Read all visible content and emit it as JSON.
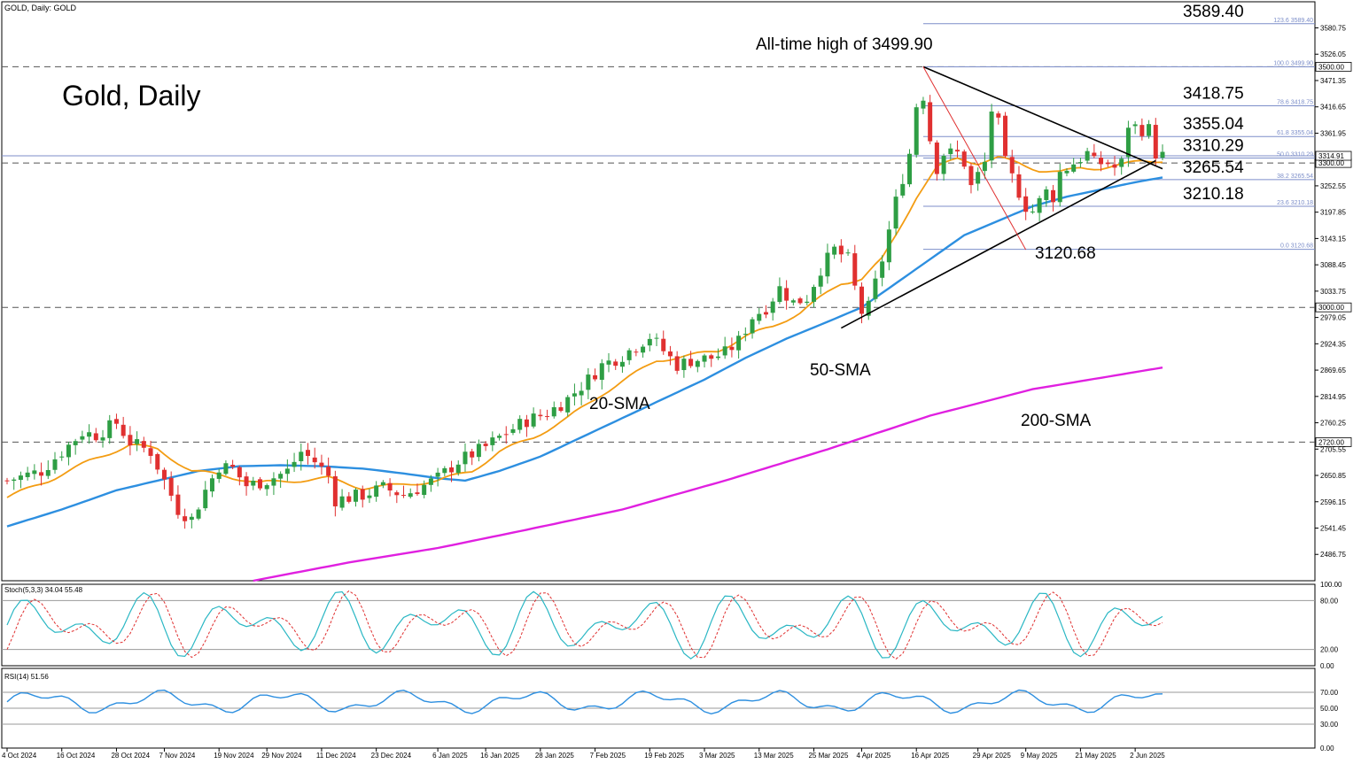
{
  "header": {
    "symbol_line": "GOLD, Daily:  GOLD"
  },
  "title": "Gold, Daily",
  "colors": {
    "up": "#2e9e44",
    "down": "#e03030",
    "sma20": "#f39c12",
    "sma50": "#2d8fe0",
    "sma200": "#e020e0",
    "fib": "#7c8ec9",
    "stoch_main": "#2ab7c4",
    "stoch_signal": "#e03030",
    "rsi": "#2d8fe0"
  },
  "annotations": {
    "ath": "All-time high of 3499.90",
    "sma20": "20-SMA",
    "sma50": "50-SMA",
    "sma200": "200-SMA",
    "low": "3120.68"
  },
  "panels": {
    "stoch_label": "Stoch(5,3,3) 34.04 55.48",
    "rsi_label": "RSI(14) 51.56"
  },
  "chart_data": {
    "type": "candlestick",
    "ylim": [
      2432,
      3635
    ],
    "price_axis_ticks": [
      "3580.75",
      "3526.05",
      "3471.35",
      "3416.65",
      "3361.95",
      "3307.25",
      "3252.55",
      "3197.85",
      "3143.15",
      "3088.45",
      "3033.75",
      "2979.05",
      "2924.35",
      "2869.65",
      "2814.95",
      "2760.25",
      "2705.55",
      "2650.85",
      "2596.15",
      "2541.45",
      "2486.75"
    ],
    "price_axis_tick_values": [
      3580.75,
      3526.05,
      3471.35,
      3416.65,
      3361.95,
      3307.25,
      3252.55,
      3197.85,
      3143.15,
      3088.45,
      3033.75,
      2979.05,
      2924.35,
      2869.65,
      2814.95,
      2760.25,
      2705.55,
      2650.85,
      2596.15,
      2541.45,
      2486.75
    ],
    "date_ticks": [
      "4 Oct 2024",
      "16 Oct 2024",
      "28 Oct 2024",
      "7 Nov 2024",
      "19 Nov 2024",
      "29 Nov 2024",
      "11 Dec 2024",
      "23 Dec 2024",
      "6 Jan 2025",
      "16 Jan 2025",
      "28 Jan 2025",
      "7 Feb 2025",
      "19 Feb 2025",
      "3 Mar 2025",
      "13 Mar 2025",
      "25 Mar 2025",
      "4 Apr 2025",
      "16 Apr 2025",
      "29 Apr 2025",
      "9 May 2025",
      "21 May 2025",
      "2 Jun 2025"
    ],
    "date_tick_bar_index": [
      0,
      8,
      16,
      23,
      31,
      38,
      46,
      54,
      63,
      70,
      78,
      86,
      94,
      102,
      110,
      118,
      125,
      133,
      142,
      149,
      157,
      165
    ],
    "horizontal_levels": [
      {
        "value": 3500,
        "label": "3500.00"
      },
      {
        "value": 3300,
        "label": "3300.00"
      },
      {
        "value": 3000,
        "label": "3000.00"
      },
      {
        "value": 2720,
        "label": "2720.00"
      }
    ],
    "current_price": {
      "value": 3314.91,
      "label": "3314.91"
    },
    "fibonacci": [
      {
        "ratio": "123.6",
        "value": 3589.4,
        "label": "3589.40",
        "small": "123.6  3589.40"
      },
      {
        "ratio": "100.0",
        "value": 3499.9,
        "label": "",
        "small": "100.0  3499.90"
      },
      {
        "ratio": "78.6",
        "value": 3418.75,
        "label": "3418.75",
        "small": "78.6  3418.75"
      },
      {
        "ratio": "61.8",
        "value": 3355.04,
        "label": "3355.04",
        "small": "61.8  3355.04"
      },
      {
        "ratio": "50.0",
        "value": 3310.29,
        "label": "3310.29",
        "small": "50.0  3310.29"
      },
      {
        "ratio": "38.2",
        "value": 3265.54,
        "label": "3265.54",
        "small": "38.2  3265.54"
      },
      {
        "ratio": "23.6",
        "value": 3210.18,
        "label": "3210.18",
        "small": "23.6  3210.18"
      },
      {
        "ratio": "0.0",
        "value": 3120.68,
        "label": "",
        "small": "0.0  3120.68"
      }
    ],
    "fib_start_bar": 134,
    "trendlines": [
      {
        "name": "upper",
        "from": [
          134,
          3500
        ],
        "to": [
          169,
          3288
        ]
      },
      {
        "name": "lower",
        "from": [
          122,
          2957
        ],
        "to": [
          168,
          3305
        ]
      },
      {
        "name": "fib-swing",
        "from": [
          134,
          3500
        ],
        "to": [
          149,
          3120
        ]
      }
    ],
    "candle_anchors": [
      [
        0,
        2640
      ],
      [
        5,
        2660
      ],
      [
        8,
        2700
      ],
      [
        11,
        2740
      ],
      [
        13,
        2735
      ],
      [
        16,
        2760
      ],
      [
        18,
        2720
      ],
      [
        21,
        2700
      ],
      [
        23,
        2640
      ],
      [
        25,
        2580
      ],
      [
        27,
        2560
      ],
      [
        29,
        2620
      ],
      [
        31,
        2670
      ],
      [
        33,
        2665
      ],
      [
        35,
        2630
      ],
      [
        38,
        2640
      ],
      [
        41,
        2660
      ],
      [
        43,
        2700
      ],
      [
        45,
        2680
      ],
      [
        47,
        2650
      ],
      [
        48,
        2600
      ],
      [
        52,
        2610
      ],
      [
        55,
        2625
      ],
      [
        58,
        2610
      ],
      [
        61,
        2630
      ],
      [
        63,
        2645
      ],
      [
        66,
        2680
      ],
      [
        70,
        2710
      ],
      [
        73,
        2740
      ],
      [
        76,
        2765
      ],
      [
        79,
        2780
      ],
      [
        82,
        2810
      ],
      [
        85,
        2850
      ],
      [
        87,
        2880
      ],
      [
        90,
        2900
      ],
      [
        92,
        2920
      ],
      [
        94,
        2940
      ],
      [
        96,
        2910
      ],
      [
        98,
        2880
      ],
      [
        100,
        2890
      ],
      [
        103,
        2895
      ],
      [
        105,
        2905
      ],
      [
        107,
        2930
      ],
      [
        109,
        2980
      ],
      [
        111,
        3000
      ],
      [
        113,
        3040
      ],
      [
        115,
        3010
      ],
      [
        117,
        3020
      ],
      [
        119,
        3080
      ],
      [
        121,
        3120
      ],
      [
        123,
        3100
      ],
      [
        124,
        3040
      ],
      [
        125,
        2990
      ],
      [
        126,
        3000
      ],
      [
        128,
        3100
      ],
      [
        130,
        3220
      ],
      [
        132,
        3320
      ],
      [
        133,
        3420
      ],
      [
        134,
        3440
      ],
      [
        135,
        3350
      ],
      [
        136,
        3290
      ],
      [
        137,
        3320
      ],
      [
        139,
        3320
      ],
      [
        140,
        3300
      ],
      [
        141,
        3250
      ],
      [
        143,
        3300
      ],
      [
        144,
        3410
      ],
      [
        145,
        3380
      ],
      [
        146,
        3300
      ],
      [
        148,
        3240
      ],
      [
        149,
        3210
      ],
      [
        150,
        3200
      ],
      [
        152,
        3240
      ],
      [
        153,
        3230
      ],
      [
        154,
        3280
      ],
      [
        156,
        3300
      ],
      [
        158,
        3320
      ],
      [
        159,
        3300
      ],
      [
        161,
        3300
      ],
      [
        162,
        3290
      ],
      [
        163,
        3300
      ],
      [
        164,
        3380
      ],
      [
        166,
        3370
      ],
      [
        167,
        3370
      ],
      [
        168,
        3320
      ],
      [
        169,
        3315
      ]
    ],
    "sma20_anchors": [
      [
        0,
        2605
      ],
      [
        6,
        2640
      ],
      [
        12,
        2680
      ],
      [
        18,
        2715
      ],
      [
        22,
        2705
      ],
      [
        27,
        2660
      ],
      [
        32,
        2650
      ],
      [
        37,
        2635
      ],
      [
        42,
        2640
      ],
      [
        47,
        2645
      ],
      [
        52,
        2625
      ],
      [
        57,
        2630
      ],
      [
        63,
        2640
      ],
      [
        68,
        2660
      ],
      [
        72,
        2700
      ],
      [
        77,
        2730
      ],
      [
        82,
        2770
      ],
      [
        87,
        2820
      ],
      [
        91,
        2855
      ],
      [
        95,
        2890
      ],
      [
        100,
        2900
      ],
      [
        104,
        2910
      ],
      [
        108,
        2940
      ],
      [
        112,
        2960
      ],
      [
        116,
        2990
      ],
      [
        119,
        3020
      ],
      [
        122,
        3050
      ],
      [
        125,
        3060
      ],
      [
        128,
        3100
      ],
      [
        130,
        3150
      ],
      [
        133,
        3230
      ],
      [
        136,
        3290
      ],
      [
        139,
        3310
      ],
      [
        142,
        3300
      ],
      [
        145,
        3310
      ],
      [
        148,
        3300
      ],
      [
        151,
        3285
      ],
      [
        154,
        3280
      ],
      [
        157,
        3290
      ],
      [
        160,
        3290
      ],
      [
        163,
        3295
      ],
      [
        166,
        3305
      ],
      [
        169,
        3305
      ]
    ],
    "sma50_anchors": [
      [
        0,
        2545
      ],
      [
        8,
        2580
      ],
      [
        16,
        2620
      ],
      [
        22,
        2640
      ],
      [
        28,
        2660
      ],
      [
        34,
        2670
      ],
      [
        40,
        2672
      ],
      [
        46,
        2670
      ],
      [
        52,
        2665
      ],
      [
        58,
        2655
      ],
      [
        63,
        2645
      ],
      [
        67,
        2640
      ],
      [
        72,
        2660
      ],
      [
        78,
        2690
      ],
      [
        84,
        2730
      ],
      [
        90,
        2770
      ],
      [
        96,
        2810
      ],
      [
        102,
        2850
      ],
      [
        108,
        2895
      ],
      [
        114,
        2935
      ],
      [
        120,
        2970
      ],
      [
        125,
        3000
      ],
      [
        130,
        3050
      ],
      [
        135,
        3100
      ],
      [
        140,
        3150
      ],
      [
        145,
        3180
      ],
      [
        150,
        3210
      ],
      [
        155,
        3230
      ],
      [
        160,
        3245
      ],
      [
        165,
        3260
      ],
      [
        169,
        3270
      ]
    ],
    "sma200_anchors": [
      [
        36,
        2432
      ],
      [
        50,
        2470
      ],
      [
        63,
        2500
      ],
      [
        75,
        2535
      ],
      [
        90,
        2580
      ],
      [
        105,
        2640
      ],
      [
        120,
        2705
      ],
      [
        135,
        2775
      ],
      [
        150,
        2830
      ],
      [
        169,
        2875
      ]
    ],
    "stoch": {
      "ylim": [
        0,
        100
      ],
      "ticks": [
        "100.00",
        "80.00",
        "20.00",
        "0.00"
      ],
      "tick_values": [
        100,
        80,
        20,
        0
      ],
      "last": [
        34.04,
        55.48
      ]
    },
    "rsi": {
      "ylim": [
        0,
        100
      ],
      "ticks": [
        "70.00",
        "50.00",
        "30.00",
        "0.00"
      ],
      "tick_values": [
        70,
        50,
        30,
        0
      ],
      "last": 51.56
    }
  }
}
